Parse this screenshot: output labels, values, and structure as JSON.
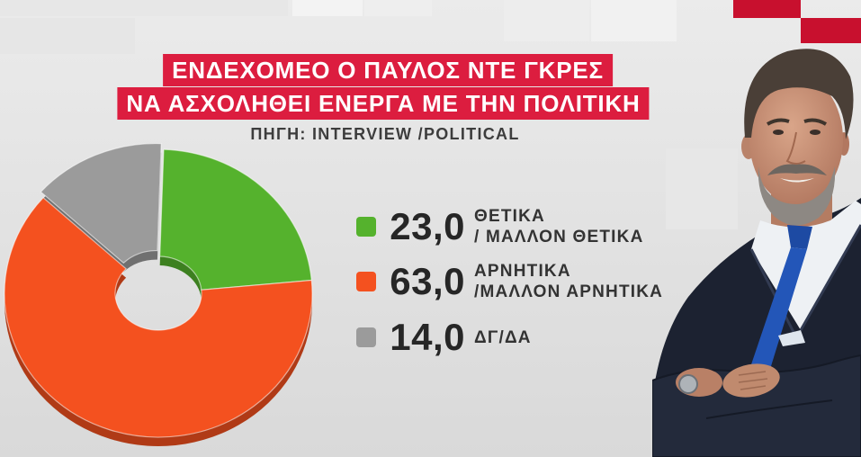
{
  "colors": {
    "title_bar": "#dc1d3f",
    "accent_red": "#c8102e",
    "background": "#e2e2e2"
  },
  "chart_data": {
    "type": "pie",
    "donut": true,
    "title_lines": [
      "ΕΝΔΕΧΟΜΕΟ Ο ΠΑΥΛΟΣ ΝΤΕ ΓΚΡΕΣ",
      "ΝΑ ΑΣΧΟΛΗΘΕΙ ΕΝΕΡΓΑ ΜΕ ΤΗΝ ΠΟΛΙΤΙΚΗ"
    ],
    "source": "ΠΗΓΗ: INTERVIEW /POLITICAL",
    "legend": "right",
    "slices": [
      {
        "label_lines": [
          "ΘΕΤΙΚΑ",
          "/ ΜΑΛΛΟΝ ΘΕΤΙΚΑ"
        ],
        "value": 23.0,
        "value_label": "23,0",
        "color": "#55b22d"
      },
      {
        "label_lines": [
          "ΑΡΝΗΤΙΚΑ",
          "/ΜΑΛΛΟΝ ΑΡΝΗΤΙΚΑ"
        ],
        "value": 63.0,
        "value_label": "63,0",
        "color": "#f4511f"
      },
      {
        "label_lines": [
          "ΔΓ/ΔΑ"
        ],
        "value": 14.0,
        "value_label": "14,0",
        "color": "#9b9b9b"
      }
    ]
  }
}
